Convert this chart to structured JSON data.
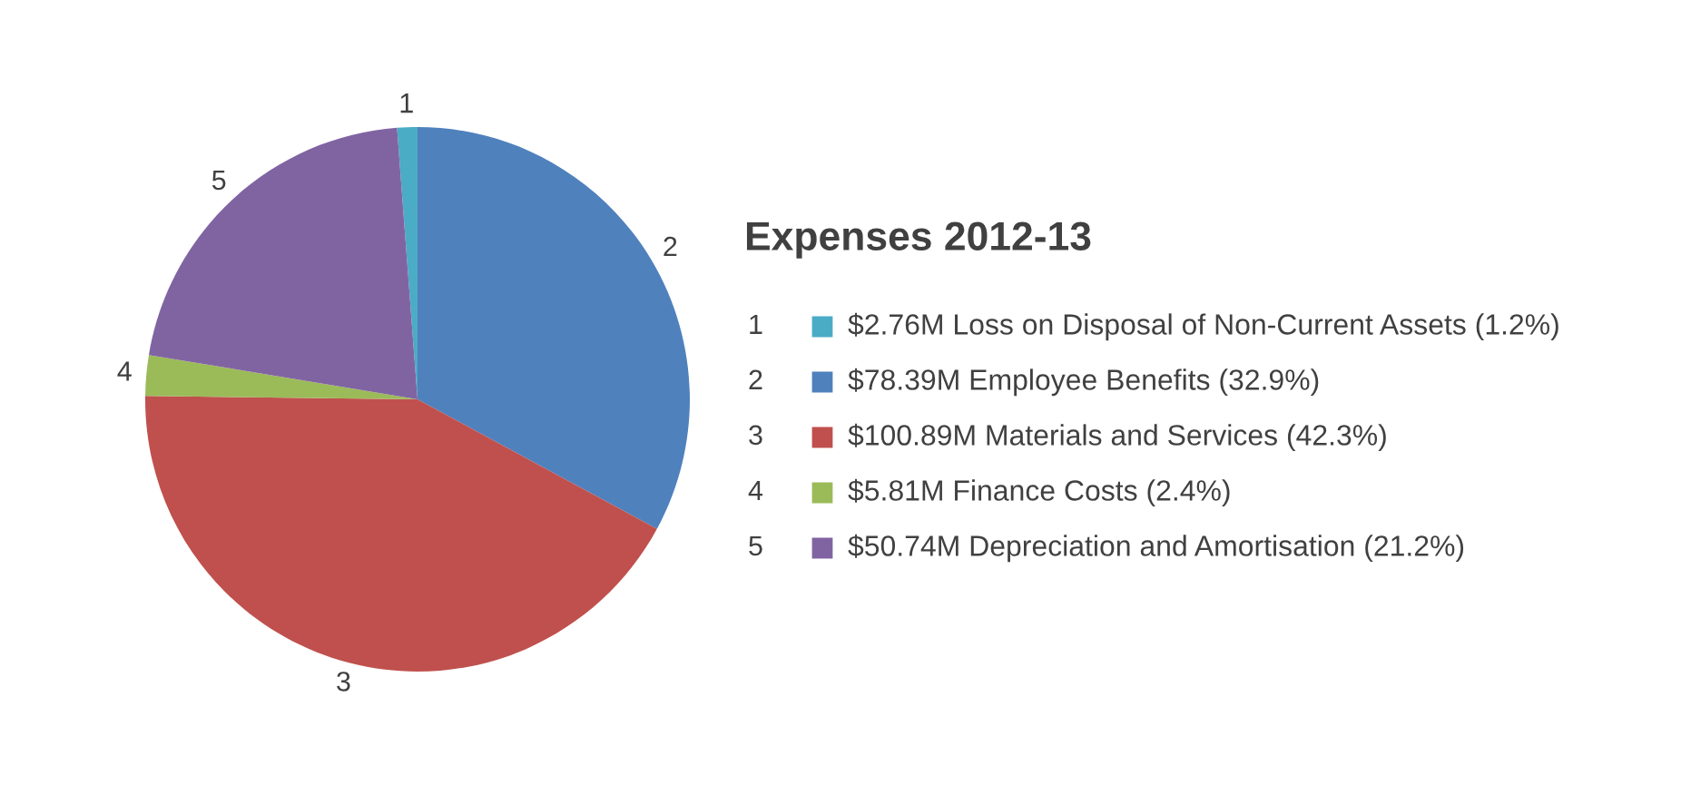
{
  "chart_data": {
    "type": "pie",
    "title": "Expenses 2012-13",
    "categories": [
      "1",
      "2",
      "3",
      "4",
      "5"
    ],
    "values": [
      1.2,
      32.9,
      42.3,
      2.4,
      21.2
    ],
    "annotations": [
      "$2.76M Loss on Disposal of Non-Current Assets (1.2%)",
      "$78.39M Employee Benefits (32.9%)",
      "$100.89M Materials and Services (42.3%)",
      "$5.81M Finance Costs (2.4%)",
      "$50.74M Depreciation and Amortisation (21.2%)"
    ],
    "colors": [
      "#4bacc6",
      "#4f81bd",
      "#c0504d",
      "#9bbb59",
      "#8064a2"
    ],
    "legend": "right"
  }
}
